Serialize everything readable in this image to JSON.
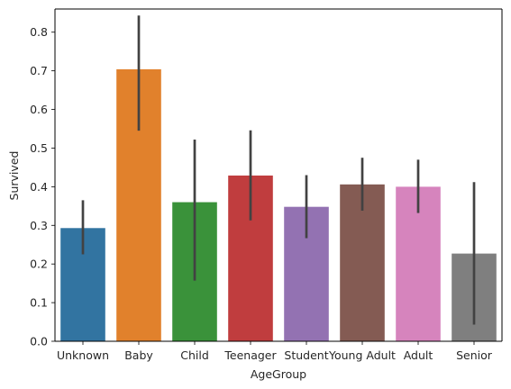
{
  "chart_data": {
    "type": "bar",
    "title": "",
    "xlabel": "AgeGroup",
    "ylabel": "Survived",
    "categories": [
      "Unknown",
      "Baby",
      "Child",
      "Teenager",
      "Student",
      "Young Adult",
      "Adult",
      "Senior"
    ],
    "values": [
      0.293,
      0.704,
      0.36,
      0.429,
      0.348,
      0.406,
      0.4,
      0.227
    ],
    "error_low": [
      0.225,
      0.545,
      0.157,
      0.313,
      0.267,
      0.338,
      0.332,
      0.043
    ],
    "error_high": [
      0.365,
      0.843,
      0.522,
      0.546,
      0.43,
      0.475,
      0.47,
      0.412
    ],
    "colors": [
      "#3274a1",
      "#e1812c",
      "#3a923a",
      "#c03d3e",
      "#9372b2",
      "#845b53",
      "#d684bd",
      "#7f7f7f"
    ],
    "error_bar_color": "#424242",
    "ylim": [
      0,
      0.86
    ],
    "yticks": [
      "0.0",
      "0.1",
      "0.2",
      "0.3",
      "0.4",
      "0.5",
      "0.6",
      "0.7",
      "0.8"
    ],
    "grid": false,
    "legend": "none"
  }
}
